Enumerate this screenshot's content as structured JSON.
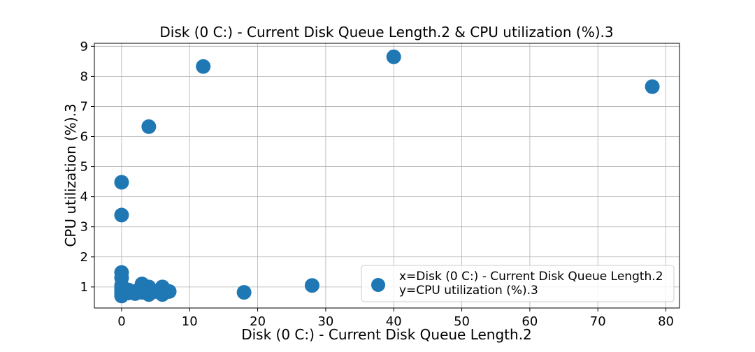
{
  "chart_data": {
    "type": "scatter",
    "title": "Disk (0 C:) - Current Disk Queue Length.2 & CPU utilization (%).3",
    "xlabel": "Disk (0 C:) - Current Disk Queue Length.2",
    "ylabel": "CPU utilization (%).3",
    "xlim": [
      -4,
      82
    ],
    "ylim": [
      0.3,
      9.1
    ],
    "xticks": [
      0,
      10,
      20,
      30,
      40,
      50,
      60,
      70,
      80
    ],
    "yticks": [
      1,
      2,
      3,
      4,
      5,
      6,
      7,
      8,
      9
    ],
    "grid": true,
    "legend_position": "lower-right",
    "color": "#1f77b4",
    "series": [
      {
        "legend_line1": "x=Disk (0 C:) - Current Disk Queue Length.2",
        "legend_line2": "y=CPU utilization (%).3",
        "points": [
          {
            "x": 0,
            "y": 4.48
          },
          {
            "x": 0,
            "y": 3.39
          },
          {
            "x": 0,
            "y": 1.48
          },
          {
            "x": 0,
            "y": 1.3
          },
          {
            "x": 0,
            "y": 1.05
          },
          {
            "x": 0,
            "y": 0.95
          },
          {
            "x": 0,
            "y": 0.85
          },
          {
            "x": 0,
            "y": 0.75
          },
          {
            "x": 0,
            "y": 0.7
          },
          {
            "x": 1,
            "y": 0.9
          },
          {
            "x": 1,
            "y": 0.8
          },
          {
            "x": 2,
            "y": 0.85
          },
          {
            "x": 2,
            "y": 0.78
          },
          {
            "x": 3,
            "y": 1.1
          },
          {
            "x": 3,
            "y": 0.95
          },
          {
            "x": 3,
            "y": 0.82
          },
          {
            "x": 4,
            "y": 6.33
          },
          {
            "x": 4,
            "y": 1.0
          },
          {
            "x": 4,
            "y": 0.85
          },
          {
            "x": 4,
            "y": 0.75
          },
          {
            "x": 5,
            "y": 0.85
          },
          {
            "x": 6,
            "y": 1.0
          },
          {
            "x": 6,
            "y": 0.85
          },
          {
            "x": 6,
            "y": 0.75
          },
          {
            "x": 7,
            "y": 0.85
          },
          {
            "x": 12,
            "y": 8.33
          },
          {
            "x": 18,
            "y": 0.82
          },
          {
            "x": 28,
            "y": 1.05
          },
          {
            "x": 40,
            "y": 8.65
          },
          {
            "x": 78,
            "y": 7.66
          }
        ]
      }
    ]
  }
}
